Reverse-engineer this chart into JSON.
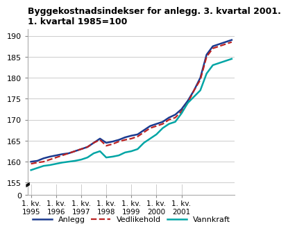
{
  "title": "Byggekostnadsindekser for anlegg. 3. kvartal 2001.\n1. kvartal 1985=100",
  "ylim_main": [
    154.5,
    191.5
  ],
  "yticks": [
    155,
    160,
    165,
    170,
    175,
    180,
    185,
    190
  ],
  "yticklabels": [
    "155",
    "160",
    "165",
    "170",
    "175",
    "180",
    "185",
    "190"
  ],
  "x_labels": [
    "1. kv.\n1995",
    "1. kv.\n1996",
    "1. kv.\n1997",
    "1. kv.\n1998",
    "1. kv.\n1999",
    "1. kv.\n2000",
    "1. kv.\n2001"
  ],
  "x_tick_positions": [
    0,
    4,
    8,
    12,
    16,
    20,
    24
  ],
  "series": {
    "Anlegg": {
      "color": "#1a3a8f",
      "linestyle": "-",
      "linewidth": 1.8,
      "data": [
        160.0,
        160.2,
        160.8,
        161.2,
        161.5,
        161.8,
        162.0,
        162.5,
        163.0,
        163.5,
        164.5,
        165.5,
        164.5,
        164.8,
        165.2,
        165.8,
        166.2,
        166.5,
        167.5,
        168.5,
        169.0,
        169.5,
        170.5,
        171.2,
        172.5,
        174.5,
        177.0,
        180.0,
        185.5,
        187.5,
        188.0,
        188.5,
        189.0
      ]
    },
    "Vedlikehold": {
      "color": "#bb2222",
      "linestyle": "--",
      "linewidth": 1.6,
      "data": [
        159.5,
        159.8,
        160.0,
        160.5,
        161.0,
        161.5,
        162.0,
        162.5,
        163.0,
        163.5,
        164.5,
        165.2,
        163.8,
        164.2,
        164.8,
        165.2,
        165.5,
        166.0,
        167.0,
        168.0,
        168.5,
        169.0,
        170.0,
        170.5,
        172.0,
        174.0,
        177.0,
        179.5,
        185.0,
        187.0,
        187.5,
        188.0,
        188.5
      ]
    },
    "Vannkraft": {
      "color": "#00a5a5",
      "linestyle": "-",
      "linewidth": 1.8,
      "data": [
        158.0,
        158.5,
        159.0,
        159.2,
        159.5,
        159.8,
        160.0,
        160.2,
        160.5,
        161.0,
        162.0,
        162.5,
        161.0,
        161.2,
        161.5,
        162.2,
        162.5,
        163.0,
        164.5,
        165.5,
        166.5,
        168.0,
        169.0,
        169.5,
        171.5,
        174.0,
        175.5,
        177.0,
        181.0,
        183.0,
        183.5,
        184.0,
        184.5
      ]
    }
  },
  "legend_entries": [
    "Anlegg",
    "Vedlikehold",
    "Vannkraft"
  ],
  "background_color": "#ffffff",
  "grid_color": "#cccccc",
  "title_fontsize": 9,
  "tick_fontsize": 8
}
